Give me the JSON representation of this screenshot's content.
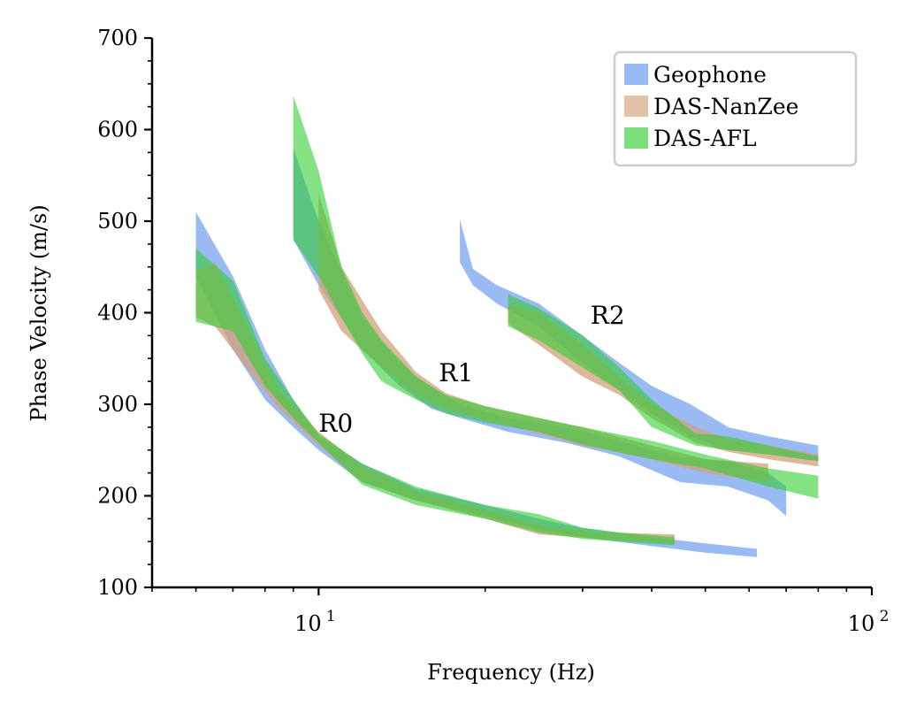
{
  "chart_data": {
    "type": "area",
    "title": "",
    "xlabel": "Frequency (Hz)",
    "ylabel": "Phase Velocity (m/s)",
    "xscale": "log",
    "xlim": [
      5,
      100
    ],
    "ylim": [
      100,
      700
    ],
    "x_major_ticks": [
      10,
      100
    ],
    "x_tick_labels": {
      "base": "10",
      "exponents": [
        "1",
        "2"
      ]
    },
    "x_minor_ticks": [
      5,
      6,
      7,
      8,
      9,
      20,
      30,
      40,
      50,
      60,
      70,
      80,
      90
    ],
    "y_ticks": [
      100,
      200,
      300,
      400,
      500,
      600,
      700
    ],
    "y_tick_labels": [
      "100",
      "200",
      "300",
      "400",
      "500",
      "600",
      "700"
    ],
    "y_minor_ticks": [
      125,
      150,
      175,
      225,
      250,
      275,
      325,
      350,
      375,
      425,
      450,
      475,
      525,
      550,
      575,
      625,
      650,
      675
    ],
    "legend": {
      "position": "top-right",
      "entries": [
        {
          "label": "Geophone",
          "color": "#6495ed"
        },
        {
          "label": "DAS-NanZee",
          "color": "#d2a07a"
        },
        {
          "label": "DAS-AFL",
          "color": "#32cd32"
        }
      ]
    },
    "annotations": [
      {
        "text": "R0",
        "x": 10.0,
        "y": 270
      },
      {
        "text": "R1",
        "x": 16.5,
        "y": 325
      },
      {
        "text": "R2",
        "x": 31.0,
        "y": 388
      }
    ],
    "series": [
      {
        "name": "Geophone",
        "mode": "R0",
        "color": "#6495ed",
        "opacity": 0.65,
        "x": [
          6.0,
          7.0,
          8.0,
          9.0,
          10.0,
          12.0,
          15.0,
          20.0,
          25.0,
          30.0,
          40.0,
          50.0,
          62.0
        ],
        "upper": [
          510,
          440,
          360,
          305,
          265,
          235,
          208,
          190,
          175,
          165,
          155,
          148,
          142
        ],
        "lower": [
          440,
          360,
          305,
          275,
          250,
          215,
          195,
          178,
          163,
          155,
          145,
          138,
          133
        ]
      },
      {
        "name": "DAS-NanZee",
        "mode": "R0",
        "color": "#d2a07a",
        "opacity": 0.75,
        "x": [
          6.0,
          6.5,
          7.5,
          8.5,
          10.0,
          12.0,
          15.0,
          20.0,
          25.0,
          32.0,
          44.0
        ],
        "upper": [
          445,
          455,
          380,
          315,
          270,
          232,
          205,
          185,
          168,
          160,
          158
        ],
        "lower": [
          395,
          385,
          335,
          295,
          255,
          215,
          195,
          175,
          158,
          153,
          148
        ]
      },
      {
        "name": "DAS-AFL",
        "mode": "R0",
        "color": "#32cd32",
        "opacity": 0.6,
        "x": [
          6.0,
          7.0,
          8.0,
          9.0,
          10.0,
          12.0,
          15.0,
          20.0,
          25.0,
          30.0,
          35.0,
          44.0
        ],
        "upper": [
          470,
          435,
          350,
          305,
          268,
          235,
          210,
          190,
          180,
          165,
          160,
          155
        ],
        "lower": [
          390,
          380,
          320,
          285,
          258,
          212,
          190,
          175,
          160,
          153,
          150,
          146
        ]
      },
      {
        "name": "Geophone",
        "mode": "R1",
        "color": "#6495ed",
        "opacity": 0.65,
        "x": [
          9.0,
          10.0,
          12.0,
          14.0,
          16.0,
          18.0,
          22.0,
          28.0,
          35.0,
          45.0,
          55.0,
          65.0,
          70.0
        ],
        "upper": [
          580,
          500,
          395,
          345,
          318,
          300,
          285,
          275,
          260,
          242,
          238,
          225,
          210
        ],
        "lower": [
          480,
          430,
          360,
          320,
          295,
          285,
          270,
          258,
          243,
          215,
          210,
          195,
          178
        ]
      },
      {
        "name": "DAS-NanZee",
        "mode": "R1",
        "color": "#d2a07a",
        "opacity": 0.75,
        "x": [
          10.0,
          11.0,
          13.0,
          15.0,
          17.0,
          20.0,
          25.0,
          30.0,
          40.0,
          50.0,
          65.0
        ],
        "upper": [
          530,
          450,
          380,
          335,
          312,
          298,
          285,
          275,
          255,
          240,
          235
        ],
        "lower": [
          425,
          380,
          340,
          310,
          295,
          283,
          268,
          255,
          240,
          225,
          215
        ]
      },
      {
        "name": "DAS-AFL",
        "mode": "R1",
        "color": "#32cd32",
        "opacity": 0.6,
        "x": [
          9.0,
          10.0,
          11.0,
          12.0,
          13.0,
          15.0,
          17.0,
          20.0,
          25.0,
          30.0,
          40.0,
          50.0,
          65.0,
          80.0
        ],
        "upper": [
          637,
          555,
          450,
          400,
          370,
          330,
          310,
          298,
          285,
          275,
          260,
          245,
          230,
          222
        ],
        "lower": [
          480,
          440,
          395,
          355,
          325,
          305,
          290,
          280,
          270,
          256,
          240,
          230,
          210,
          197
        ]
      },
      {
        "name": "Geophone",
        "mode": "R2",
        "color": "#6495ed",
        "opacity": 0.65,
        "x": [
          18.0,
          19.0,
          21.0,
          25.0,
          30.0,
          35.0,
          40.0,
          47.0,
          55.0,
          65.0,
          80.0
        ],
        "upper": [
          502,
          448,
          430,
          410,
          375,
          345,
          320,
          300,
          275,
          265,
          255
        ],
        "lower": [
          455,
          430,
          410,
          385,
          345,
          315,
          290,
          265,
          250,
          245,
          238
        ]
      },
      {
        "name": "DAS-NanZee",
        "mode": "R2",
        "color": "#d2a07a",
        "opacity": 0.75,
        "x": [
          22.0,
          25.0,
          30.0,
          35.0,
          40.0,
          48.0,
          55.0,
          65.0,
          80.0
        ],
        "upper": [
          410,
          400,
          365,
          330,
          300,
          275,
          262,
          255,
          245
        ],
        "lower": [
          388,
          365,
          330,
          310,
          285,
          258,
          248,
          240,
          232
        ]
      },
      {
        "name": "DAS-AFL",
        "mode": "R2",
        "color": "#32cd32",
        "opacity": 0.6,
        "x": [
          22.0,
          25.0,
          30.0,
          35.0,
          40.0,
          48.0,
          55.0,
          65.0,
          80.0
        ],
        "upper": [
          420,
          405,
          375,
          340,
          305,
          268,
          265,
          255,
          243
        ],
        "lower": [
          385,
          370,
          340,
          315,
          275,
          255,
          250,
          245,
          238
        ]
      }
    ]
  }
}
